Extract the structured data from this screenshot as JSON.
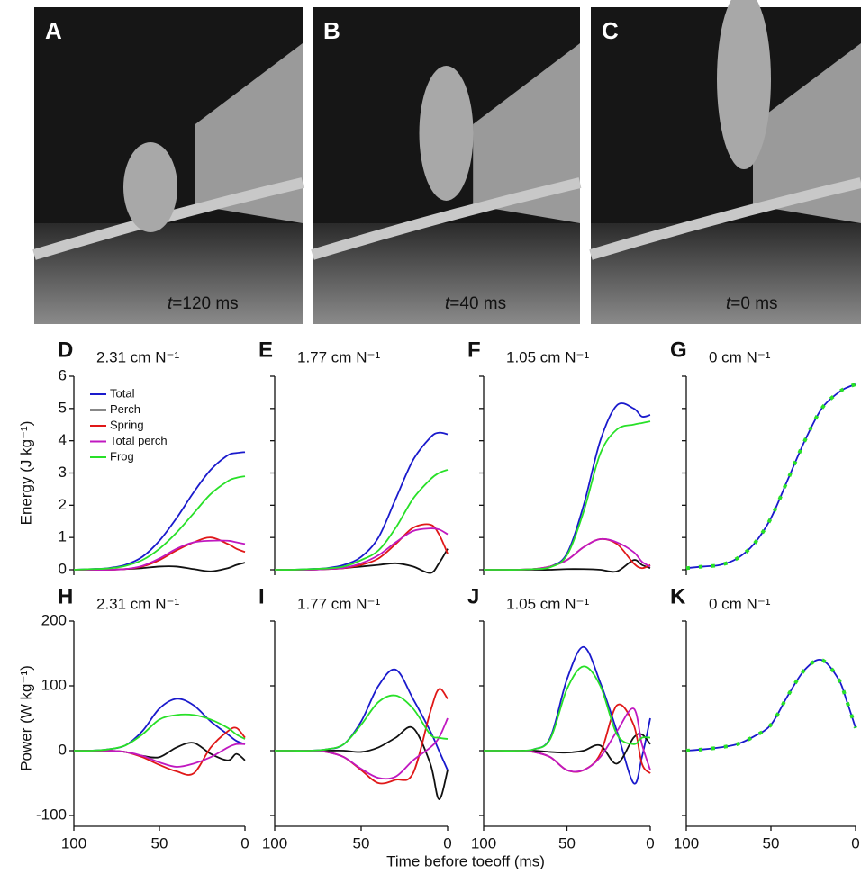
{
  "photos": [
    {
      "label": "A",
      "time_var": "t",
      "time_text": "=120 ms"
    },
    {
      "label": "B",
      "time_var": "t",
      "time_text": "=40 ms"
    },
    {
      "label": "C",
      "time_var": "t",
      "time_text": "=0 ms"
    }
  ],
  "xlabel": "Time before toeoff (ms)",
  "chart_data": [
    {
      "type": "line",
      "panel": "D",
      "subtitle": "2.31 cm N⁻¹",
      "ylabel": "Energy (J kg⁻¹)",
      "legend": "upper left",
      "x": [
        100,
        90,
        80,
        70,
        60,
        50,
        40,
        30,
        20,
        10,
        5,
        0
      ],
      "xlim": [
        100,
        0
      ],
      "ylim": [
        0,
        6
      ],
      "yticks": [
        0,
        1,
        2,
        3,
        4,
        5,
        6
      ],
      "series": [
        {
          "name": "Total",
          "color": "#1a1acc",
          "values": [
            0,
            0.02,
            0.05,
            0.15,
            0.4,
            0.9,
            1.6,
            2.4,
            3.1,
            3.55,
            3.62,
            3.65
          ]
        },
        {
          "name": "Perch",
          "color": "#111111",
          "values": [
            0,
            0,
            0,
            0.02,
            0.05,
            0.1,
            0.1,
            0.02,
            -0.05,
            0.05,
            0.15,
            0.22
          ]
        },
        {
          "name": "Spring",
          "color": "#e01818",
          "values": [
            0,
            0,
            0,
            0.02,
            0.1,
            0.3,
            0.6,
            0.85,
            1.0,
            0.8,
            0.65,
            0.55
          ]
        },
        {
          "name": "Total perch",
          "color": "#c018c0",
          "values": [
            0,
            0,
            0,
            0.02,
            0.12,
            0.35,
            0.65,
            0.85,
            0.9,
            0.9,
            0.85,
            0.8
          ]
        },
        {
          "name": "Frog",
          "color": "#28e028",
          "values": [
            0,
            0.02,
            0.04,
            0.12,
            0.3,
            0.65,
            1.15,
            1.75,
            2.35,
            2.75,
            2.85,
            2.9
          ]
        }
      ]
    },
    {
      "type": "line",
      "panel": "E",
      "subtitle": "1.77 cm N⁻¹",
      "x": [
        100,
        90,
        80,
        70,
        60,
        50,
        40,
        30,
        20,
        10,
        5,
        0
      ],
      "xlim": [
        100,
        0
      ],
      "ylim": [
        0,
        6
      ],
      "yticks": [
        0,
        1,
        2,
        3,
        4,
        5,
        6
      ],
      "series": [
        {
          "color": "#1a1acc",
          "values": [
            0,
            0,
            0.02,
            0.05,
            0.15,
            0.4,
            1.0,
            2.2,
            3.4,
            4.1,
            4.25,
            4.2
          ]
        },
        {
          "color": "#111111",
          "values": [
            0,
            0,
            0,
            0.02,
            0.05,
            0.1,
            0.15,
            0.2,
            0.1,
            -0.1,
            0.2,
            0.65
          ]
        },
        {
          "color": "#e01818",
          "values": [
            0,
            0,
            0,
            0.02,
            0.05,
            0.15,
            0.35,
            0.8,
            1.3,
            1.4,
            1.1,
            0.5
          ]
        },
        {
          "color": "#c018c0",
          "values": [
            0,
            0,
            0,
            0.02,
            0.06,
            0.2,
            0.45,
            0.85,
            1.2,
            1.28,
            1.25,
            1.1
          ]
        },
        {
          "color": "#28e028",
          "values": [
            0,
            0,
            0.02,
            0.04,
            0.1,
            0.3,
            0.6,
            1.3,
            2.2,
            2.8,
            3.0,
            3.1
          ]
        }
      ]
    },
    {
      "type": "line",
      "panel": "F",
      "subtitle": "1.05 cm N⁻¹",
      "x": [
        100,
        90,
        80,
        70,
        60,
        50,
        40,
        30,
        20,
        10,
        5,
        0
      ],
      "xlim": [
        100,
        0
      ],
      "ylim": [
        0,
        6
      ],
      "yticks": [
        0,
        1,
        2,
        3,
        4,
        5,
        6
      ],
      "series": [
        {
          "color": "#1a1acc",
          "values": [
            0,
            0,
            0,
            0.02,
            0.1,
            0.5,
            2.0,
            4.0,
            5.1,
            5.0,
            4.75,
            4.8
          ]
        },
        {
          "color": "#111111",
          "values": [
            0,
            0,
            0,
            0,
            0,
            0.02,
            0.02,
            0,
            -0.05,
            0.3,
            0.15,
            0.05
          ]
        },
        {
          "color": "#e01818",
          "values": [
            0,
            0,
            0,
            0.02,
            0.1,
            0.3,
            0.7,
            0.95,
            0.8,
            0.2,
            0.05,
            0.15
          ]
        },
        {
          "color": "#c018c0",
          "values": [
            0,
            0,
            0,
            0.02,
            0.1,
            0.3,
            0.7,
            0.95,
            0.85,
            0.55,
            0.25,
            0.1
          ]
        },
        {
          "color": "#28e028",
          "values": [
            0,
            0,
            0,
            0.02,
            0.08,
            0.45,
            1.8,
            3.6,
            4.35,
            4.5,
            4.55,
            4.6
          ]
        }
      ]
    },
    {
      "type": "line",
      "panel": "G",
      "subtitle": "0 cm N⁻¹",
      "x": [
        100,
        90,
        80,
        70,
        60,
        50,
        40,
        30,
        20,
        10,
        5,
        0
      ],
      "xlim": [
        100,
        0
      ],
      "ylim": [
        0,
        6
      ],
      "yticks": [
        0,
        1,
        2,
        3,
        4,
        5,
        6
      ],
      "series": [
        {
          "color": "#1a1acc",
          "values": [
            0.05,
            0.1,
            0.15,
            0.35,
            0.8,
            1.6,
            2.8,
            4.0,
            5.0,
            5.5,
            5.65,
            5.75
          ]
        },
        {
          "color": "#28e028",
          "linestyle": "dashed",
          "values": [
            0.05,
            0.1,
            0.15,
            0.35,
            0.8,
            1.6,
            2.8,
            4.0,
            5.0,
            5.5,
            5.65,
            5.75
          ]
        }
      ]
    },
    {
      "type": "line",
      "panel": "H",
      "subtitle": "2.31 cm N⁻¹",
      "ylabel": "Power (W kg⁻¹)",
      "x": [
        100,
        90,
        80,
        70,
        60,
        50,
        40,
        30,
        20,
        10,
        5,
        0
      ],
      "xlim": [
        100,
        0
      ],
      "xticks": [
        100,
        50,
        0
      ],
      "ylim": [
        -100,
        200
      ],
      "yticks": [
        -100,
        0,
        100,
        200
      ],
      "series": [
        {
          "color": "#1a1acc",
          "values": [
            0,
            0,
            2,
            8,
            30,
            65,
            80,
            70,
            45,
            25,
            15,
            10
          ]
        },
        {
          "color": "#111111",
          "values": [
            0,
            0,
            0,
            -2,
            -8,
            -10,
            5,
            12,
            -5,
            -15,
            -5,
            -15
          ]
        },
        {
          "color": "#e01818",
          "values": [
            0,
            0,
            0,
            -2,
            -10,
            -22,
            -32,
            -35,
            5,
            30,
            35,
            20
          ]
        },
        {
          "color": "#c018c0",
          "values": [
            0,
            0,
            0,
            -2,
            -8,
            -18,
            -25,
            -20,
            -10,
            5,
            10,
            10
          ]
        },
        {
          "color": "#28e028",
          "values": [
            0,
            0,
            2,
            8,
            25,
            48,
            55,
            55,
            48,
            35,
            25,
            18
          ]
        }
      ]
    },
    {
      "type": "line",
      "panel": "I",
      "subtitle": "1.77 cm N⁻¹",
      "x": [
        100,
        90,
        80,
        70,
        60,
        50,
        40,
        30,
        20,
        10,
        5,
        0
      ],
      "xlim": [
        100,
        0
      ],
      "xticks": [
        100,
        50,
        0
      ],
      "ylim": [
        -100,
        200
      ],
      "yticks": [
        -100,
        0,
        100,
        200
      ],
      "series": [
        {
          "color": "#1a1acc",
          "values": [
            0,
            0,
            0,
            2,
            10,
            45,
            100,
            125,
            80,
            30,
            0,
            -30
          ]
        },
        {
          "color": "#111111",
          "values": [
            0,
            0,
            0,
            0,
            0,
            -2,
            5,
            20,
            35,
            -20,
            -75,
            -30
          ]
        },
        {
          "color": "#e01818",
          "values": [
            0,
            0,
            0,
            -2,
            -10,
            -30,
            -50,
            -45,
            -35,
            60,
            95,
            80
          ]
        },
        {
          "color": "#c018c0",
          "values": [
            0,
            0,
            0,
            -2,
            -10,
            -28,
            -42,
            -40,
            -15,
            5,
            20,
            50
          ]
        },
        {
          "color": "#28e028",
          "values": [
            0,
            0,
            0,
            2,
            10,
            40,
            75,
            85,
            65,
            25,
            20,
            18
          ]
        }
      ]
    },
    {
      "type": "line",
      "panel": "J",
      "subtitle": "1.05 cm N⁻¹",
      "x": [
        100,
        90,
        80,
        70,
        60,
        50,
        40,
        30,
        20,
        10,
        5,
        0
      ],
      "xlim": [
        100,
        0
      ],
      "xticks": [
        100,
        50,
        0
      ],
      "ylim": [
        -100,
        200
      ],
      "yticks": [
        -100,
        0,
        100,
        200
      ],
      "series": [
        {
          "color": "#1a1acc",
          "values": [
            0,
            0,
            0,
            2,
            20,
            110,
            160,
            105,
            30,
            -50,
            -10,
            50
          ]
        },
        {
          "color": "#111111",
          "values": [
            0,
            0,
            0,
            0,
            -2,
            -3,
            0,
            8,
            -20,
            20,
            25,
            10
          ]
        },
        {
          "color": "#e01818",
          "values": [
            0,
            0,
            0,
            -2,
            -10,
            -30,
            -30,
            -5,
            70,
            40,
            -20,
            -35
          ]
        },
        {
          "color": "#c018c0",
          "values": [
            0,
            0,
            0,
            -2,
            -10,
            -30,
            -30,
            -10,
            30,
            65,
            10,
            -30
          ]
        },
        {
          "color": "#28e028",
          "values": [
            0,
            0,
            0,
            2,
            18,
            95,
            130,
            100,
            25,
            10,
            20,
            20
          ]
        }
      ]
    },
    {
      "type": "line",
      "panel": "K",
      "subtitle": "0 cm N⁻¹",
      "x": [
        100,
        90,
        80,
        70,
        60,
        50,
        40,
        30,
        20,
        10,
        5,
        0
      ],
      "xlim": [
        100,
        0
      ],
      "xticks": [
        100,
        50,
        0
      ],
      "ylim": [
        -100,
        200
      ],
      "yticks": [
        -100,
        0,
        100,
        200
      ],
      "series": [
        {
          "color": "#1a1acc",
          "values": [
            0,
            2,
            5,
            10,
            22,
            40,
            85,
            125,
            140,
            110,
            75,
            35
          ]
        },
        {
          "color": "#28e028",
          "linestyle": "dashed",
          "values": [
            0,
            2,
            5,
            10,
            22,
            40,
            85,
            125,
            140,
            110,
            75,
            35
          ]
        }
      ]
    }
  ]
}
